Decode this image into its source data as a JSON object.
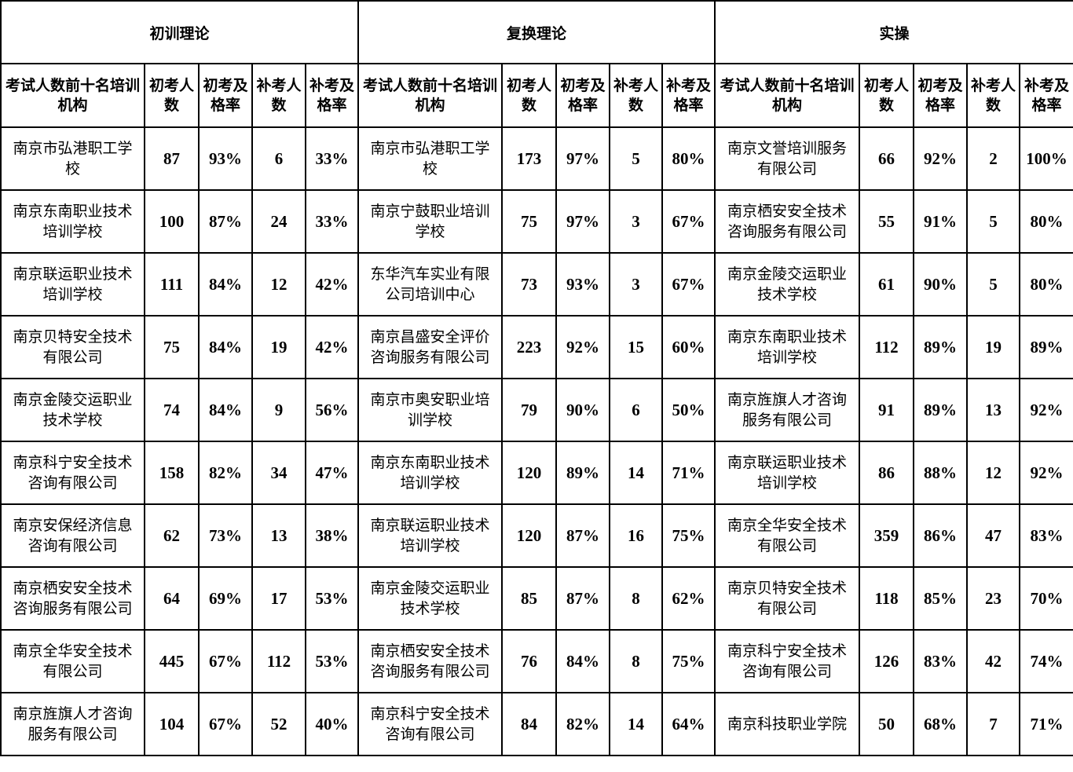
{
  "sections": [
    {
      "title": "初训理论",
      "headers": [
        "考试人数前十名培训机构",
        "初考人数",
        "初考及格率",
        "补考人数",
        "补考及格率"
      ],
      "rows": [
        [
          "南京市弘港职工学校",
          "87",
          "93%",
          "6",
          "33%"
        ],
        [
          "南京东南职业技术培训学校",
          "100",
          "87%",
          "24",
          "33%"
        ],
        [
          "南京联运职业技术培训学校",
          "111",
          "84%",
          "12",
          "42%"
        ],
        [
          "南京贝特安全技术有限公司",
          "75",
          "84%",
          "19",
          "42%"
        ],
        [
          "南京金陵交运职业技术学校",
          "74",
          "84%",
          "9",
          "56%"
        ],
        [
          "南京科宁安全技术咨询有限公司",
          "158",
          "82%",
          "34",
          "47%"
        ],
        [
          "南京安保经济信息咨询有限公司",
          "62",
          "73%",
          "13",
          "38%"
        ],
        [
          "南京栖安安全技术咨询服务有限公司",
          "64",
          "69%",
          "17",
          "53%"
        ],
        [
          "南京全华安全技术有限公司",
          "445",
          "67%",
          "112",
          "53%"
        ],
        [
          "南京旌旗人才咨询服务有限公司",
          "104",
          "67%",
          "52",
          "40%"
        ]
      ]
    },
    {
      "title": "复换理论",
      "headers": [
        "考试人数前十名培训机构",
        "初考人数",
        "初考及格率",
        "补考人数",
        "补考及格率"
      ],
      "rows": [
        [
          "南京市弘港职工学校",
          "173",
          "97%",
          "5",
          "80%"
        ],
        [
          "南京宁鼓职业培训学校",
          "75",
          "97%",
          "3",
          "67%"
        ],
        [
          "东华汽车实业有限公司培训中心",
          "73",
          "93%",
          "3",
          "67%"
        ],
        [
          "南京昌盛安全评价咨询服务有限公司",
          "223",
          "92%",
          "15",
          "60%"
        ],
        [
          "南京市奥安职业培训学校",
          "79",
          "90%",
          "6",
          "50%"
        ],
        [
          "南京东南职业技术培训学校",
          "120",
          "89%",
          "14",
          "71%"
        ],
        [
          "南京联运职业技术培训学校",
          "120",
          "87%",
          "16",
          "75%"
        ],
        [
          "南京金陵交运职业技术学校",
          "85",
          "87%",
          "8",
          "62%"
        ],
        [
          "南京栖安安全技术咨询服务有限公司",
          "76",
          "84%",
          "8",
          "75%"
        ],
        [
          "南京科宁安全技术咨询有限公司",
          "84",
          "82%",
          "14",
          "64%"
        ]
      ]
    },
    {
      "title": "实操",
      "headers": [
        "考试人数前十名培训机构",
        "初考人数",
        "初考及格率",
        "补考人数",
        "补考及格率"
      ],
      "rows": [
        [
          "南京文誉培训服务有限公司",
          "66",
          "92%",
          "2",
          "100%"
        ],
        [
          "南京栖安安全技术咨询服务有限公司",
          "55",
          "91%",
          "5",
          "80%"
        ],
        [
          "南京金陵交运职业技术学校",
          "61",
          "90%",
          "5",
          "80%"
        ],
        [
          "南京东南职业技术培训学校",
          "112",
          "89%",
          "19",
          "89%"
        ],
        [
          "南京旌旗人才咨询服务有限公司",
          "91",
          "89%",
          "13",
          "92%"
        ],
        [
          "南京联运职业技术培训学校",
          "86",
          "88%",
          "12",
          "92%"
        ],
        [
          "南京全华安全技术有限公司",
          "359",
          "86%",
          "47",
          "83%"
        ],
        [
          "南京贝特安全技术有限公司",
          "118",
          "85%",
          "23",
          "70%"
        ],
        [
          "南京科宁安全技术咨询有限公司",
          "126",
          "83%",
          "42",
          "74%"
        ],
        [
          "南京科技职业学院",
          "50",
          "68%",
          "7",
          "71%"
        ]
      ]
    }
  ]
}
